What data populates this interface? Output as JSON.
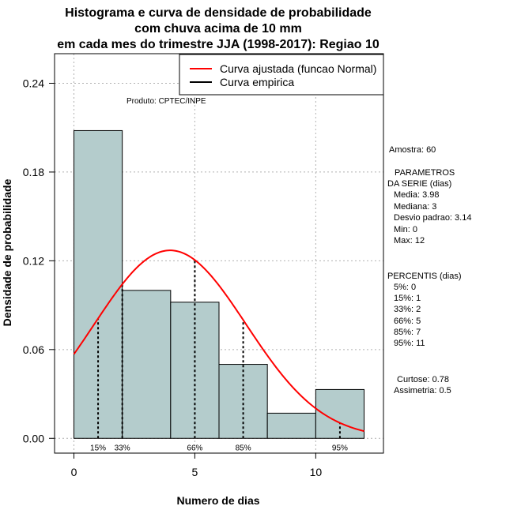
{
  "chart_data": {
    "type": "bar",
    "title": [
      "Histograma e curva de densidade de probabilidade",
      "com chuva acima de 10 mm",
      "em cada mes do trimestre JJA (1998-2017): Regiao 10"
    ],
    "xlabel": "Numero de dias",
    "ylabel": "Densidade de probabilidade",
    "xlim": [
      -0.8,
      12.8
    ],
    "ylim": [
      -0.01,
      0.26
    ],
    "xticks": [
      0,
      5,
      10
    ],
    "yticks": [
      0.0,
      0.06,
      0.12,
      0.18,
      0.24
    ],
    "ytick_labels": [
      "0.00",
      "0.06",
      "0.12",
      "0.18",
      "0.24"
    ],
    "bins": [
      {
        "x0": 0,
        "x1": 2,
        "density": 0.208
      },
      {
        "x0": 2,
        "x1": 4,
        "density": 0.1
      },
      {
        "x0": 4,
        "x1": 6,
        "density": 0.092
      },
      {
        "x0": 6,
        "x1": 8,
        "density": 0.05
      },
      {
        "x0": 8,
        "x1": 10,
        "density": 0.017
      },
      {
        "x0": 10,
        "x1": 12,
        "density": 0.033
      }
    ],
    "normal_curve": {
      "mean": 3.98,
      "sd": 3.14,
      "x_range": [
        0,
        12
      ],
      "color": "#ff0000"
    },
    "percentile_lines": [
      {
        "label": "15%",
        "x": 1
      },
      {
        "label": "33%",
        "x": 2
      },
      {
        "label": "66%",
        "x": 5
      },
      {
        "label": "85%",
        "x": 7
      },
      {
        "label": "95%",
        "x": 11
      }
    ],
    "legend": {
      "position": "top-right",
      "entries": [
        {
          "label": "Curva ajustada (funcao Normal)",
          "color": "#ff0000"
        },
        {
          "label": "Curva empirica",
          "color": "#000000"
        }
      ]
    },
    "product_label": "Produto: CPTEC/INPE",
    "bar_color": "#b4cccc"
  },
  "stats": {
    "sample": "Amostra: 60",
    "params_title": [
      " PARAMETROS",
      "DA SERIE (dias)"
    ],
    "params": [
      "Media: 3.98",
      "Mediana: 3",
      "Desvio padrao: 3.14",
      "Min: 0",
      "Max: 12"
    ],
    "percentiles_title": "PERCENTIS (dias)",
    "percentiles": [
      "5%: 0",
      "15%: 1",
      "33%: 2",
      "66%: 5",
      "85%: 7",
      "95%: 11"
    ],
    "shape": [
      "Curtose: 0.78",
      "Assimetria: 0.5"
    ]
  }
}
